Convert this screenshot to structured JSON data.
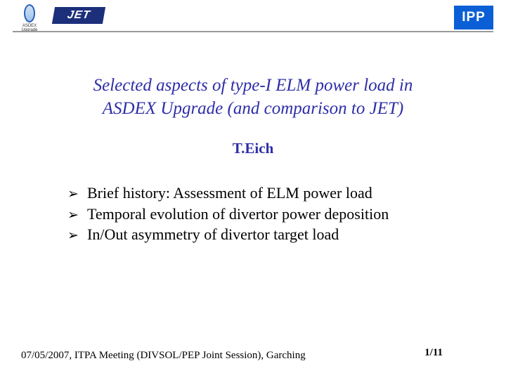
{
  "header": {
    "asdex_caption": "ASDEX Upgrade",
    "jet_label": "JET",
    "ipp_label": "IPP"
  },
  "title": {
    "line1": "Selected aspects of type-I ELM power load in",
    "line2": "ASDEX Upgrade (and comparison to JET)"
  },
  "author": "T.Eich",
  "bullets": {
    "items": [
      "Brief history: Assessment of ELM power load",
      "Temporal evolution of divertor power deposition",
      "In/Out asymmetry of divertor target load"
    ]
  },
  "footer": "07/05/2007, ITPA Meeting (DIVSOL/PEP Joint Session), Garching",
  "page": "1/11",
  "colors": {
    "title_color": "#2e2ea8",
    "ipp_bg": "#0b5fd6",
    "jet_bg": "#1c2f7a",
    "rule": "#999999",
    "text": "#000000",
    "background": "#ffffff"
  }
}
